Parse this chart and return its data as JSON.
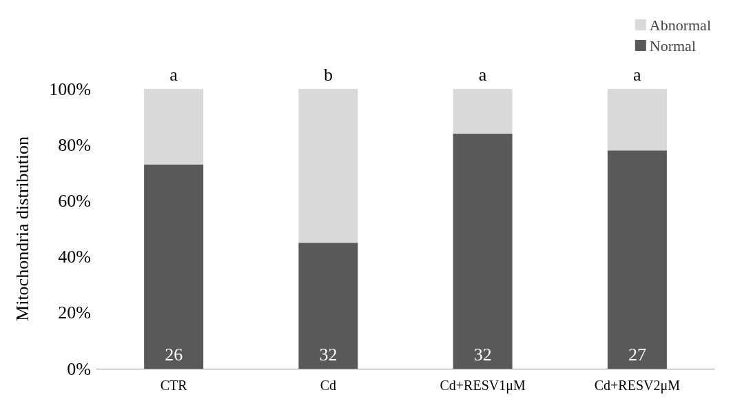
{
  "chart_data": {
    "type": "bar",
    "stacked": true,
    "ylabel": "Mitochondria distribution",
    "categories": [
      "CTR",
      "Cd",
      "Cd+RESV1μM",
      "Cd+RESV2μM"
    ],
    "series": [
      {
        "name": "Normal",
        "color": "#595959",
        "values": [
          73,
          45,
          84,
          78
        ]
      },
      {
        "name": "Abnormal",
        "color": "#d9d9d9",
        "values": [
          27,
          55,
          16,
          22
        ]
      }
    ],
    "ylim": [
      0,
      100
    ],
    "yticks": [
      {
        "value": 0,
        "label": "0%"
      },
      {
        "value": 20,
        "label": "20%"
      },
      {
        "value": 40,
        "label": "40%"
      },
      {
        "value": 60,
        "label": "60%"
      },
      {
        "value": 80,
        "label": "80%"
      },
      {
        "value": 100,
        "label": "100%"
      }
    ],
    "grid": false,
    "legend": "top right",
    "annotations": [
      {
        "text": "a",
        "x": "CTR",
        "y": 100
      },
      {
        "text": "b",
        "x": "Cd",
        "y": 100
      },
      {
        "text": "a",
        "x": "Cd+RESV1μM",
        "y": 100
      },
      {
        "text": "a",
        "x": "Cd+RESV2μM",
        "y": 100
      },
      {
        "text": "26",
        "x": "CTR",
        "y": 0
      },
      {
        "text": "32",
        "x": "Cd",
        "y": 0
      },
      {
        "text": "32",
        "x": "Cd+RESV1μM",
        "y": 0
      },
      {
        "text": "27",
        "x": "Cd+RESV2μM",
        "y": 0
      }
    ]
  }
}
